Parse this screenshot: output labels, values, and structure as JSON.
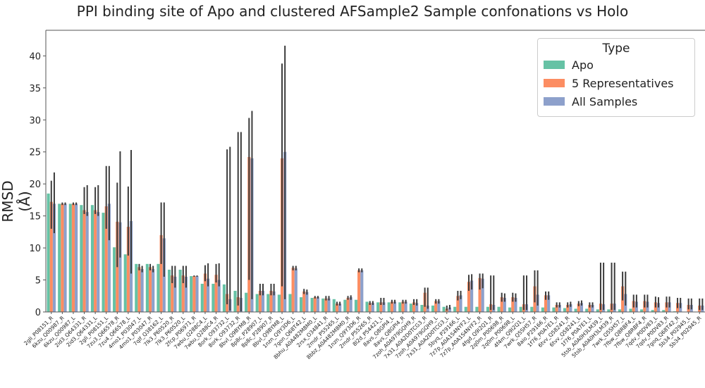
{
  "chart_data": {
    "type": "bar",
    "title": "PPI binding site of Apo and clustered AFSample2 Sample confonations vs Holo",
    "xlabel": "",
    "ylabel": "RMSD (Å)",
    "ylim": [
      0,
      44
    ],
    "yticks": [
      0,
      5,
      10,
      15,
      20,
      25,
      30,
      35,
      40
    ],
    "grid": false,
    "legend": {
      "title": "Type",
      "placement": "top-right"
    },
    "categories": [
      "2gli_P08151_R",
      "6kzu_Q00987_R",
      "6kzu_Q00987_L",
      "2id3_Q64331_R",
      "2id3_Q64331_L",
      "2gli_P08151_L",
      "7zu3_Q66578_R",
      "7zu4_Q66578_L",
      "4mo1_P03047_L",
      "4mo1_P03047_R",
      "7qlf_Q38162_L",
      "7lk3_P60520_R",
      "7lk3_P60520_L",
      "2fcp_P06971_R",
      "7wbu_Q288C4_L",
      "7wbu_Q288C4_R",
      "8ork_O93732_L",
      "8ork_O93732_R",
      "8bvl_Q9BYM8_R",
      "8p8c_P28907_L",
      "8p8c_P28907_R",
      "8bvl_Q9BYM8_L",
      "1nzn_Q9Y3D6_L",
      "7gon_Q68T42_L",
      "8bhu_A0A482M8M0_L",
      "2rsx_O34841_R",
      "2mdr_P55265_L",
      "8bbz_A0A482M8M0_R",
      "1nzn_Q9Y3D6_R",
      "2mdr_P55265_R",
      "8l2d_P54421_L",
      "8avs_Q8GPI4_L",
      "8avs_Q8GPI4_R",
      "7zoh_A0A979GQH9_R",
      "7x31_A0A2D0TCG3_R",
      "7zoh_A0A979GQH9_L",
      "7x31_A0A2D0TCG3_L",
      "5byq_P29166_L",
      "7z7p_A0A1S4NYF2_L",
      "7z7p_A0A1S4NYF2_R",
      "4fgd_Q9I2Q1_R",
      "2q0m_P00698_R",
      "2q0m_P00698_L",
      "4f4m_Q9I2Q1_L",
      "7wrk_Q5SH57_R",
      "8aio_P29166_R",
      "1f76_P0A7E1_R",
      "6tvv_Q58241_R",
      "6tvv_Q58241_L",
      "1f76_P0A7E1_L",
      "5tsb_A0A0H3LM39_L",
      "5tsb_A0A0H3LM39_R",
      "7wrk_Q5SH57_L",
      "7fbw_Q8RBF4_L",
      "7fbw_Q8RBF4_R",
      "7qdv_P0DV83_L",
      "7qdv_P0DV83_R",
      "7goq_Q68T42_R",
      "5b34_P02945_L",
      "5b34_P02945_R"
    ],
    "series": [
      {
        "name": "Apo",
        "color": "#66c2a5",
        "values": [
          18.5,
          16.9,
          16.9,
          16.7,
          16.7,
          15.5,
          10.1,
          9.0,
          7.5,
          7.5,
          7.5,
          6.6,
          6.6,
          5.6,
          4.4,
          4.4,
          4.3,
          3.3,
          3.0,
          2.8,
          2.8,
          2.7,
          2.8,
          2.3,
          2.2,
          2.1,
          2.0,
          1.9,
          1.9,
          1.6,
          1.5,
          1.5,
          1.5,
          1.3,
          1.1,
          1.0,
          0.8,
          0.8,
          0.8,
          0.8,
          0.8,
          0.8,
          0.7,
          0.8,
          0.8,
          0.7,
          0.7,
          0.6,
          0.5,
          0.5,
          0.4,
          0.4,
          0.4,
          0.5,
          0.4,
          0.3,
          0.3,
          0.1,
          0.05,
          0.05
        ]
      },
      {
        "name": "5 Representatives",
        "color": "#fc8d62",
        "values": [
          17.2,
          16.9,
          16.9,
          15.9,
          15.9,
          16.5,
          14.1,
          13.3,
          7.0,
          7.0,
          12.0,
          5.7,
          5.7,
          5.6,
          6.0,
          5.8,
          2.8,
          2.3,
          24.2,
          3.3,
          3.3,
          24.0,
          6.9,
          3.2,
          2.3,
          2.1,
          1.3,
          2.2,
          6.5,
          1.4,
          1.5,
          1.6,
          1.6,
          1.5,
          3.0,
          1.7,
          0.5,
          2.5,
          4.7,
          5.3,
          1.2,
          2.3,
          2.3,
          1.2,
          4.0,
          2.6,
          1.1,
          1.1,
          1.3,
          1.1,
          1.3,
          1.3,
          4.0,
          1.7,
          1.7,
          1.5,
          1.5,
          1.4,
          1.1,
          1.0
        ],
        "error": [
          [
            13.0,
            20.5
          ],
          [
            16.7,
            17.1
          ],
          [
            16.7,
            17.1
          ],
          [
            15.3,
            19.5
          ],
          [
            15.3,
            19.5
          ],
          [
            13.0,
            22.8
          ],
          [
            7.0,
            20.2
          ],
          [
            8.8,
            19.6
          ],
          [
            6.5,
            7.5
          ],
          [
            6.5,
            7.5
          ],
          [
            7.5,
            17.1
          ],
          [
            4.5,
            7.2
          ],
          [
            4.5,
            7.2
          ],
          [
            5.5,
            5.7
          ],
          [
            4.8,
            7.3
          ],
          [
            4.6,
            7.5
          ],
          [
            1.2,
            25.4
          ],
          [
            1.0,
            28.1
          ],
          [
            5.0,
            30.3
          ],
          [
            2.6,
            4.4
          ],
          [
            2.6,
            4.4
          ],
          [
            4.0,
            38.8
          ],
          [
            6.5,
            7.2
          ],
          [
            2.8,
            3.6
          ],
          [
            2.1,
            2.5
          ],
          [
            1.8,
            2.5
          ],
          [
            1.0,
            1.6
          ],
          [
            1.9,
            2.5
          ],
          [
            6.2,
            6.8
          ],
          [
            1.1,
            1.7
          ],
          [
            1.1,
            2.2
          ],
          [
            1.3,
            1.9
          ],
          [
            1.3,
            1.9
          ],
          [
            1.1,
            2.0
          ],
          [
            0.8,
            3.8
          ],
          [
            1.3,
            2.0
          ],
          [
            0.2,
            1.0
          ],
          [
            1.8,
            3.3
          ],
          [
            3.3,
            5.8
          ],
          [
            3.5,
            6.0
          ],
          [
            0.3,
            5.7
          ],
          [
            1.6,
            3.0
          ],
          [
            1.6,
            3.0
          ],
          [
            0.3,
            5.7
          ],
          [
            1.5,
            6.5
          ],
          [
            1.9,
            3.2
          ],
          [
            0.7,
            1.5
          ],
          [
            0.7,
            1.5
          ],
          [
            0.9,
            1.7
          ],
          [
            0.7,
            1.5
          ],
          [
            0.3,
            7.7
          ],
          [
            0.3,
            7.7
          ],
          [
            1.8,
            6.3
          ],
          [
            0.7,
            2.7
          ],
          [
            0.7,
            2.7
          ],
          [
            0.7,
            2.4
          ],
          [
            0.7,
            2.4
          ],
          [
            0.6,
            2.2
          ],
          [
            0.4,
            2.1
          ],
          [
            0.3,
            2.1
          ]
        ]
      },
      {
        "name": "All Samples",
        "color": "#8da0cb",
        "values": [
          16.9,
          16.9,
          16.9,
          15.6,
          15.6,
          16.9,
          14.0,
          14.2,
          6.7,
          6.7,
          11.5,
          5.5,
          5.5,
          5.6,
          5.2,
          5.0,
          2.0,
          2.2,
          24.0,
          3.3,
          3.2,
          25.0,
          6.8,
          3.1,
          2.3,
          2.1,
          1.3,
          2.3,
          6.5,
          1.4,
          1.5,
          1.6,
          1.6,
          1.4,
          1.0,
          1.7,
          0.7,
          2.6,
          4.9,
          5.2,
          1.1,
          2.2,
          2.2,
          1.2,
          2.7,
          2.6,
          1.1,
          1.2,
          1.4,
          1.1,
          1.2,
          1.3,
          2.8,
          1.6,
          1.6,
          1.4,
          1.5,
          1.4,
          1.1,
          1.0
        ],
        "error": [
          [
            12.3,
            21.8
          ],
          [
            16.7,
            17.1
          ],
          [
            16.7,
            17.1
          ],
          [
            15.0,
            19.8
          ],
          [
            15.0,
            19.8
          ],
          [
            11.2,
            22.8
          ],
          [
            8.5,
            25.1
          ],
          [
            6.0,
            25.3
          ],
          [
            6.2,
            7.2
          ],
          [
            6.2,
            7.2
          ],
          [
            5.5,
            17.1
          ],
          [
            3.8,
            7.2
          ],
          [
            3.8,
            7.2
          ],
          [
            5.5,
            5.7
          ],
          [
            4.0,
            7.6
          ],
          [
            4.0,
            7.6
          ],
          [
            0.2,
            25.8
          ],
          [
            0.1,
            28.1
          ],
          [
            2.0,
            31.4
          ],
          [
            2.6,
            4.4
          ],
          [
            2.6,
            4.4
          ],
          [
            2.0,
            41.6
          ],
          [
            6.5,
            7.2
          ],
          [
            2.7,
            3.5
          ],
          [
            2.1,
            2.5
          ],
          [
            1.8,
            2.5
          ],
          [
            1.0,
            1.6
          ],
          [
            1.9,
            2.6
          ],
          [
            6.2,
            6.8
          ],
          [
            1.1,
            1.7
          ],
          [
            1.1,
            2.2
          ],
          [
            1.3,
            1.9
          ],
          [
            1.3,
            1.9
          ],
          [
            1.0,
            2.0
          ],
          [
            0.5,
            3.8
          ],
          [
            1.3,
            2.0
          ],
          [
            0.4,
            1.1
          ],
          [
            2.0,
            3.3
          ],
          [
            3.5,
            5.9
          ],
          [
            3.7,
            6.0
          ],
          [
            0.3,
            5.7
          ],
          [
            1.6,
            2.9
          ],
          [
            1.6,
            2.9
          ],
          [
            0.3,
            5.7
          ],
          [
            1.0,
            6.5
          ],
          [
            1.9,
            3.2
          ],
          [
            0.7,
            1.5
          ],
          [
            0.8,
            1.6
          ],
          [
            1.0,
            1.8
          ],
          [
            0.7,
            1.5
          ],
          [
            0.3,
            7.7
          ],
          [
            0.3,
            7.7
          ],
          [
            1.0,
            6.3
          ],
          [
            0.7,
            2.7
          ],
          [
            0.7,
            2.7
          ],
          [
            0.7,
            2.3
          ],
          [
            0.7,
            2.4
          ],
          [
            0.6,
            2.2
          ],
          [
            0.4,
            2.1
          ],
          [
            0.3,
            2.1
          ]
        ]
      }
    ]
  }
}
